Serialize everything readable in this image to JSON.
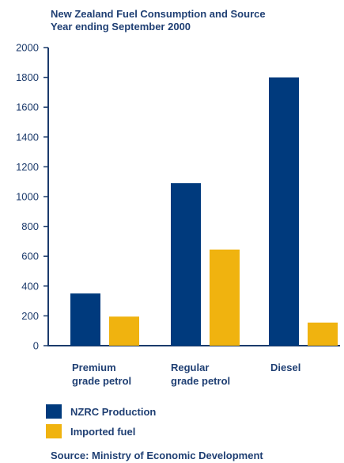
{
  "colors": {
    "nzrc": "#003a7d",
    "imported": "#f0b30f",
    "axis": "#1b3a6b"
  },
  "chart_data": {
    "type": "bar",
    "title": "New Zealand Fuel Consumption and Source",
    "subtitle": "Year ending September 2000",
    "categories": [
      [
        "Premium",
        "grade petrol"
      ],
      [
        "Regular",
        "grade petrol"
      ],
      [
        "Diesel"
      ]
    ],
    "series": [
      {
        "name": "NZRC Production",
        "color": "#003a7d",
        "values": [
          350,
          1090,
          1800
        ]
      },
      {
        "name": "Imported fuel",
        "color": "#f0b30f",
        "values": [
          195,
          645,
          155
        ]
      }
    ],
    "ylim": [
      0,
      2000
    ],
    "yticks": [
      0,
      200,
      400,
      600,
      800,
      1000,
      1200,
      1400,
      1600,
      1800,
      2000
    ],
    "grid": false,
    "legend_position": "bottom-left",
    "source": "Source: Ministry of Economic Development"
  }
}
